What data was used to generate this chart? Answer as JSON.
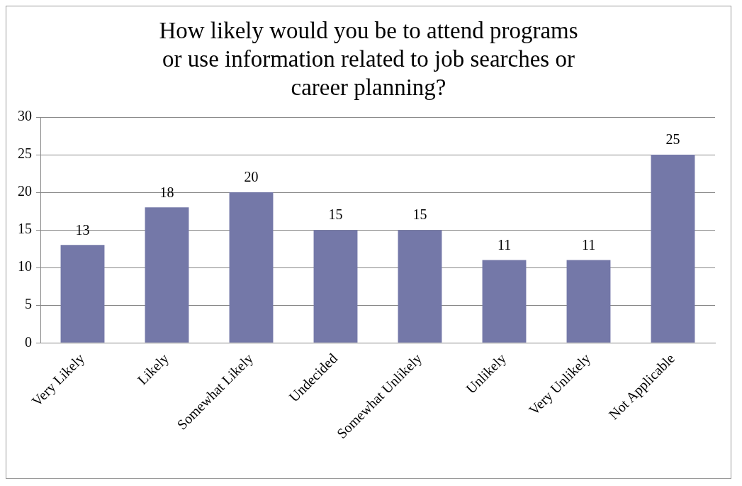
{
  "chart_data": {
    "type": "bar",
    "title": "How likely would you be to attend programs or use information related to job searches or career planning?",
    "categories": [
      "Very Likely",
      "Likely",
      "Somewhat Likely",
      "Undecided",
      "Somewhat Unlikely",
      "Unlikely",
      "Very Unlikely",
      "Not Applicable"
    ],
    "values": [
      13,
      18,
      20,
      15,
      15,
      11,
      11,
      25
    ],
    "color": "#7478a8",
    "ylim": [
      0,
      30
    ],
    "yticks": [
      0,
      5,
      10,
      15,
      20,
      25,
      30
    ],
    "grid": "y",
    "legend": false,
    "data_labels": true
  }
}
